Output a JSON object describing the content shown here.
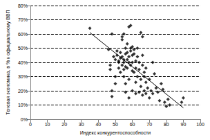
{
  "chart_data": {
    "type": "scatter",
    "x_label": "Индекс конкурентоспособности",
    "y_label": "Теневая экономика, в % к официальному ВВП",
    "xlim": [
      0,
      100
    ],
    "xticks": [
      0,
      10,
      20,
      30,
      40,
      50,
      60,
      70,
      80,
      90,
      100
    ],
    "ylim": [
      0,
      80
    ],
    "yticks": [
      {
        "value": 0,
        "label": "0%"
      },
      {
        "value": 10,
        "label": "10%"
      },
      {
        "value": 20,
        "label": "20%"
      },
      {
        "value": 30,
        "label": "30%"
      },
      {
        "value": 40,
        "label": "40%"
      },
      {
        "value": 50,
        "label": "50%"
      },
      {
        "value": 60,
        "label": "60%"
      },
      {
        "value": 70,
        "label": "70%"
      },
      {
        "value": 80,
        "label": "80%"
      }
    ],
    "grid": true,
    "series": [
      {
        "type": "scatter",
        "color": "#000000",
        "marker": "diamond",
        "x": [
          35,
          46,
          47,
          47,
          48,
          48,
          48,
          49,
          50,
          50,
          50,
          51,
          51,
          52,
          52,
          52,
          53,
          53,
          53,
          54,
          54,
          54,
          54,
          55,
          55,
          55,
          55,
          55,
          56,
          56,
          56,
          56,
          56,
          57,
          57,
          57,
          57,
          58,
          58,
          58,
          58,
          58,
          59,
          59,
          59,
          59,
          60,
          60,
          60,
          60,
          60,
          61,
          61,
          61,
          62,
          62,
          62,
          62,
          63,
          63,
          63,
          64,
          64,
          64,
          65,
          65,
          65,
          66,
          66,
          66,
          66,
          67,
          67,
          67,
          68,
          68,
          68,
          69,
          70,
          70,
          71,
          72,
          72,
          73,
          74,
          75,
          76,
          77,
          78,
          79,
          80,
          81,
          82,
          89,
          90
        ],
        "values": [
          64,
          49,
          38,
          35,
          60,
          16,
          20,
          44,
          42,
          30,
          25,
          48,
          45,
          40,
          36,
          41,
          43,
          47,
          33,
          38,
          44,
          56,
          58,
          40,
          35,
          42,
          30,
          60,
          46,
          50,
          37,
          25,
          19,
          42,
          47,
          36,
          53,
          65,
          44,
          40,
          28,
          15,
          66,
          48,
          38,
          50,
          45,
          51,
          40,
          34,
          20,
          46,
          33,
          49,
          41,
          36,
          26,
          18,
          44,
          30,
          50,
          40,
          35,
          19,
          61,
          28,
          23,
          58,
          45,
          38,
          17,
          33,
          20,
          30,
          36,
          26,
          18,
          22,
          28,
          15,
          20,
          40,
          18,
          32,
          22,
          19,
          13,
          25,
          21,
          12,
          9,
          14,
          10,
          12,
          15
        ]
      },
      {
        "type": "line",
        "color": "#000000",
        "line_style": "solid",
        "x": [
          35,
          90
        ],
        "values": [
          61,
          8
        ]
      }
    ]
  }
}
